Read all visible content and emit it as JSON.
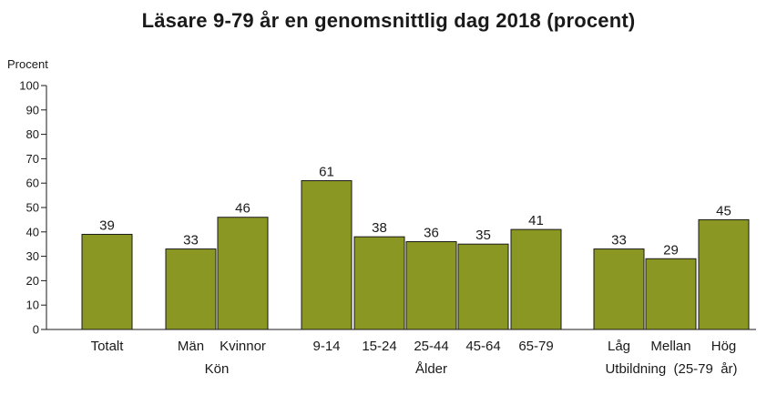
{
  "colors": {
    "bar": "#8b9723",
    "bar_stroke": "#1a1a1a",
    "axis": "#1a1a1a",
    "text": "#1a1a1a"
  },
  "chart_data": {
    "type": "bar",
    "title": "Läsare 9-79 år en genomsnittlig dag 2018 (procent)",
    "ylabel": "Procent",
    "xlabel": "",
    "ylim": [
      0,
      100
    ],
    "yticks": [
      0,
      10,
      20,
      30,
      40,
      50,
      60,
      70,
      80,
      90,
      100
    ],
    "grid": false,
    "categories": [
      "Totalt",
      "Män",
      "Kvinnor",
      "9-14",
      "15-24",
      "25-44",
      "45-64",
      "65-79",
      "Låg",
      "Mellan",
      "Hög"
    ],
    "values": [
      39,
      33,
      46,
      61,
      38,
      36,
      35,
      41,
      33,
      29,
      45
    ],
    "groups": [
      {
        "label": "",
        "categories": [
          "Totalt"
        ]
      },
      {
        "label": "Kön",
        "categories": [
          "Män",
          "Kvinnor"
        ]
      },
      {
        "label": "Ålder",
        "categories": [
          "9-14",
          "15-24",
          "25-44",
          "45-64",
          "65-79"
        ]
      },
      {
        "label": "Utbildning  (25-79  år)",
        "categories": [
          "Låg",
          "Mellan",
          "Hög"
        ]
      }
    ]
  }
}
